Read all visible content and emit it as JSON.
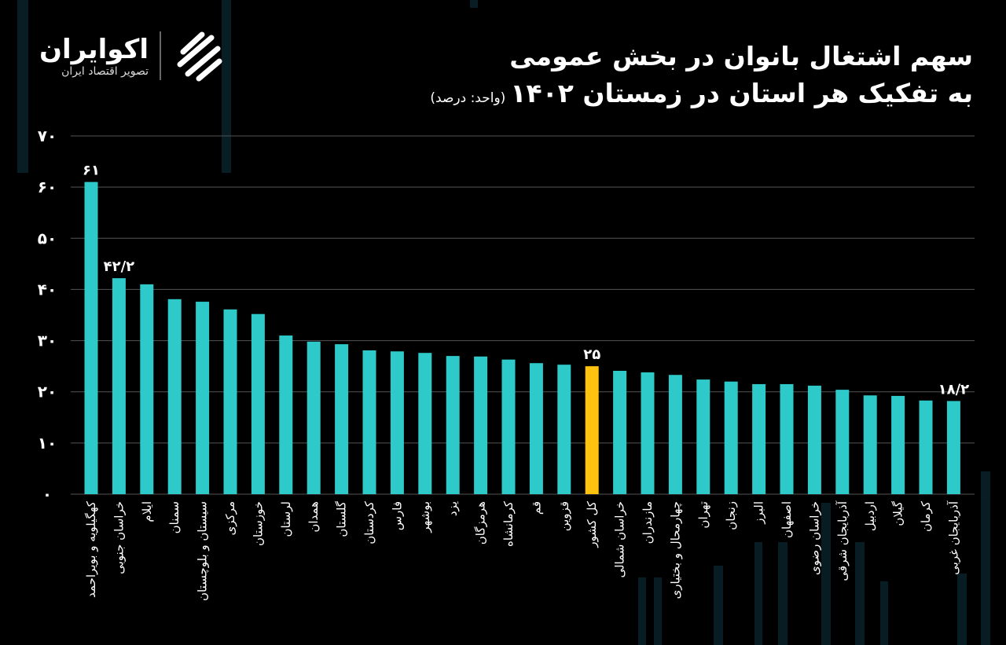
{
  "header": {
    "title_line1": "سهم اشتغال بانوان در بخش عمومی",
    "title_line2": "به تفکیک هر استان در زمستان ۱۴۰۲",
    "unit": "(واحد: درصد)"
  },
  "logo": {
    "name": "اکوایران",
    "tagline": "تصویر اقتصاد ایران"
  },
  "colors": {
    "bar": "#2ec9c9",
    "highlight": "#ffc20e",
    "grid": "#555555",
    "background": "#000000"
  },
  "chart_data": {
    "type": "bar",
    "title": "سهم اشتغال بانوان در بخش عمومی به تفکیک هر استان در زمستان ۱۴۰۲",
    "ylabel": "(واحد: درصد)",
    "ylim": [
      0,
      70
    ],
    "yticks": [
      0,
      10,
      20,
      30,
      40,
      50,
      60,
      70
    ],
    "ytick_labels": [
      "۰",
      "۱۰",
      "۲۰",
      "۳۰",
      "۴۰",
      "۵۰",
      "۶۰",
      "۷۰"
    ],
    "grid": true,
    "categories": [
      "کهگیلویه و بویراحمد",
      "خراسان جنوبی",
      "ایلام",
      "سمنان",
      "سیستان و بلوچستان",
      "مرکزی",
      "خوزستان",
      "لرستان",
      "همدان",
      "گلستان",
      "کردستان",
      "فارس",
      "بوشهر",
      "یزد",
      "هرمزگان",
      "کرمانشاه",
      "قم",
      "قزوین",
      "کل کشور",
      "خراسان شمالی",
      "مازندران",
      "چهارمحال و بختیاری",
      "تهران",
      "زنجان",
      "البرز",
      "اصفهان",
      "خراسان رضوی",
      "آذربایجان شرقی",
      "اردبیل",
      "گیلان",
      "کرمان",
      "آذربایجان غربی"
    ],
    "values": [
      61,
      42.2,
      41.0,
      38.1,
      37.6,
      36.1,
      35.2,
      31.0,
      29.8,
      29.3,
      28.1,
      27.9,
      27.6,
      27.0,
      26.9,
      26.3,
      25.6,
      25.3,
      25,
      24.1,
      23.8,
      23.3,
      22.4,
      22.0,
      21.5,
      21.5,
      21.2,
      20.4,
      19.3,
      19.2,
      18.3,
      18.2
    ],
    "highlight_index": 18,
    "data_labels": [
      {
        "index": 0,
        "text": "۶۱"
      },
      {
        "index": 1,
        "text": "۴۲/۲"
      },
      {
        "index": 18,
        "text": "۲۵"
      },
      {
        "index": 31,
        "text": "۱۸/۲"
      }
    ]
  }
}
